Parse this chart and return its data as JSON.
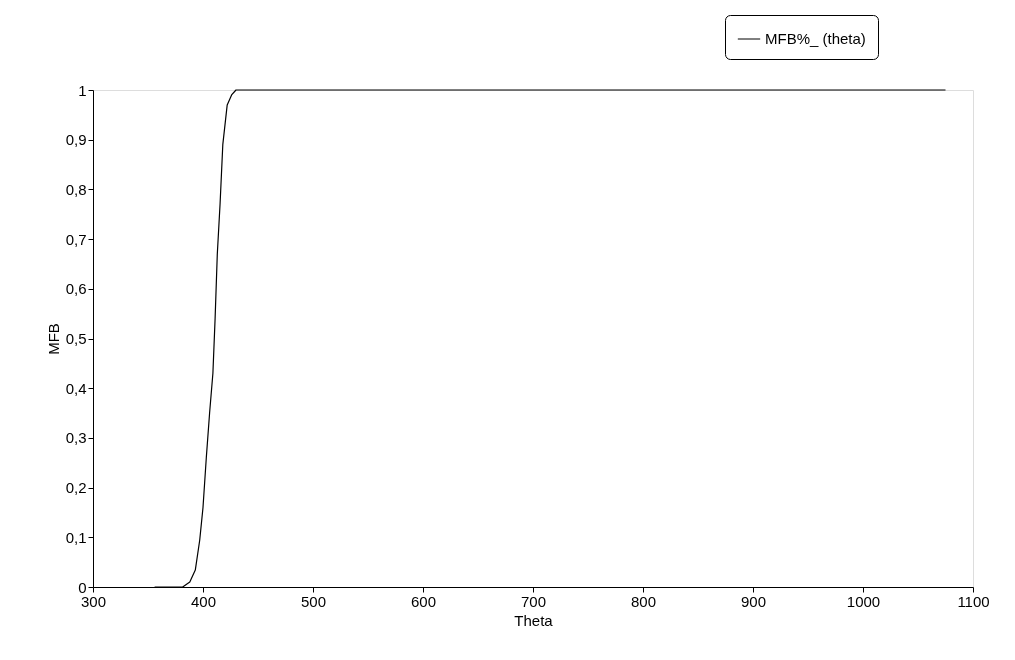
{
  "chart_data": {
    "type": "line",
    "xlabel": "Theta",
    "ylabel": "MFB",
    "x": [
      356,
      370,
      381.5,
      388,
      393,
      397,
      400,
      403,
      406,
      409,
      411,
      413,
      415.5,
      418,
      422,
      426,
      430,
      500,
      700,
      900,
      1075
    ],
    "series": [
      {
        "name": "MFB%_ (theta)",
        "color": "#000000",
        "values": [
          0,
          0,
          0,
          0.01,
          0.034,
          0.094,
          0.16,
          0.26,
          0.35,
          0.43,
          0.54,
          0.67,
          0.77,
          0.89,
          0.97,
          0.99,
          1,
          1,
          1,
          1,
          1
        ]
      }
    ],
    "xlim": [
      300,
      1100
    ],
    "xticks": [
      300,
      400,
      500,
      600,
      700,
      800,
      900,
      1000,
      1100
    ],
    "ylim": [
      0,
      1
    ],
    "yticks": [
      0,
      {
        "value": 0.1,
        "label": "0,1"
      },
      {
        "value": 0.2,
        "label": "0,2"
      },
      {
        "value": 0.3,
        "label": "0,3"
      },
      {
        "value": 0.4,
        "label": "0,4"
      },
      {
        "value": 0.5,
        "label": "0,5"
      },
      {
        "value": 0.6,
        "label": "0,6"
      },
      {
        "value": 0.7,
        "label": "0,7"
      },
      {
        "value": 0.8,
        "label": "0,8"
      },
      {
        "value": 0.9,
        "label": "0,9"
      },
      1
    ],
    "grid": false,
    "legend": "top right",
    "marker": "none",
    "line_style": "solid"
  }
}
